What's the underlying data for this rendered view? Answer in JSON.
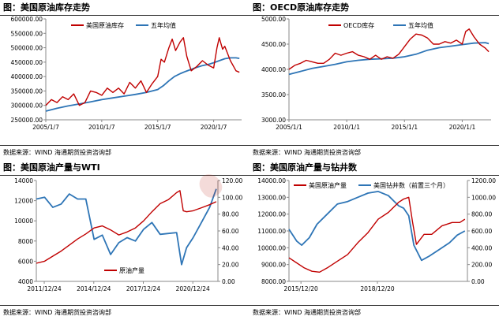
{
  "panels": [
    {
      "title": "图：美国原油库存走势",
      "source": "数据来源：WIND   海通期货投资咨询部"
    },
    {
      "title": "图：OECD原油库存走势",
      "source": "数据来源：WIND   海通期货投资咨询部"
    },
    {
      "title": "图：美国原油产量与WTI",
      "source": "数据来源：WIND   海通期货投资咨询部"
    },
    {
      "title": "图：美国原油产量与钻井数",
      "source": "数据来源：WIND   海通期货投资咨询部"
    }
  ],
  "colors": {
    "red": "#c00000",
    "blue": "#2e75b6"
  },
  "chart_data": [
    {
      "type": "line",
      "title": "美国原油库存走势",
      "x_ticks": [
        "2005/1/7",
        "2010/1/7",
        "2015/1/7",
        "2020/1/7"
      ],
      "x_range": [
        2005.0,
        2022.5
      ],
      "ylim": [
        250000,
        600000
      ],
      "y_ticks": [
        "250000.00",
        "300000.00",
        "350000.00",
        "400000.00",
        "450000.00",
        "500000.00",
        "550000.00",
        "600000.00"
      ],
      "y_axis": "left",
      "grid": false,
      "legend": "top-left",
      "series": [
        {
          "name": "美国原油库存",
          "color": "red",
          "x": [
            2005.0,
            2005.5,
            2006.0,
            2006.5,
            2007.0,
            2007.5,
            2008.0,
            2008.5,
            2009.0,
            2009.5,
            2010.0,
            2010.5,
            2011.0,
            2011.5,
            2012.0,
            2012.5,
            2013.0,
            2013.5,
            2014.0,
            2014.5,
            2015.0,
            2015.3,
            2015.6,
            2016.0,
            2016.3,
            2016.6,
            2017.0,
            2017.3,
            2017.6,
            2018.0,
            2018.5,
            2019.0,
            2019.5,
            2020.0,
            2020.3,
            2020.5,
            2020.8,
            2021.0,
            2021.5,
            2022.0,
            2022.3
          ],
          "y": [
            300000,
            320000,
            310000,
            330000,
            320000,
            340000,
            300000,
            310000,
            350000,
            345000,
            335000,
            360000,
            345000,
            360000,
            340000,
            380000,
            360000,
            385000,
            345000,
            375000,
            400000,
            460000,
            450000,
            500000,
            530000,
            490000,
            520000,
            535000,
            470000,
            420000,
            435000,
            455000,
            440000,
            430000,
            500000,
            535000,
            495000,
            505000,
            455000,
            420000,
            415000
          ]
        },
        {
          "name": "五年均值",
          "color": "blue",
          "x": [
            2005.0,
            2006.0,
            2007.0,
            2008.0,
            2009.0,
            2010.0,
            2011.0,
            2012.0,
            2013.0,
            2014.0,
            2015.0,
            2015.5,
            2016.0,
            2016.5,
            2017.0,
            2017.5,
            2018.0,
            2018.5,
            2019.0,
            2019.5,
            2020.0,
            2020.5,
            2021.0,
            2021.5,
            2022.0,
            2022.3
          ],
          "y": [
            280000,
            290000,
            298000,
            305000,
            312000,
            320000,
            326000,
            332000,
            338000,
            345000,
            355000,
            368000,
            385000,
            400000,
            410000,
            418000,
            425000,
            432000,
            438000,
            442000,
            448000,
            455000,
            462000,
            465000,
            465000,
            463000
          ]
        }
      ]
    },
    {
      "type": "line",
      "title": "OECD原油库存走势",
      "x_ticks": [
        "2005/1/1",
        "2010/1/1",
        "2015/1/1",
        "2020/1/1"
      ],
      "x_range": [
        2005.0,
        2022.5
      ],
      "ylim": [
        3000,
        5000
      ],
      "y_ticks": [
        "3000.00",
        "3500.00",
        "4000.00",
        "4500.00",
        "5000.00"
      ],
      "y_axis": "left",
      "grid": false,
      "legend": "top-left",
      "series": [
        {
          "name": "OECD库存",
          "color": "red",
          "x": [
            2005.0,
            2005.5,
            2006.0,
            2006.5,
            2007.0,
            2007.5,
            2008.0,
            2008.5,
            2009.0,
            2009.5,
            2010.0,
            2010.5,
            2011.0,
            2011.5,
            2012.0,
            2012.5,
            2013.0,
            2013.5,
            2014.0,
            2014.5,
            2015.0,
            2015.5,
            2016.0,
            2016.5,
            2017.0,
            2017.5,
            2018.0,
            2018.5,
            2019.0,
            2019.5,
            2020.0,
            2020.3,
            2020.6,
            2021.0,
            2021.5,
            2022.0,
            2022.3
          ],
          "y": [
            4000,
            4080,
            4120,
            4180,
            4150,
            4120,
            4120,
            4200,
            4320,
            4280,
            4320,
            4350,
            4280,
            4250,
            4200,
            4280,
            4200,
            4250,
            4220,
            4300,
            4450,
            4600,
            4700,
            4680,
            4620,
            4500,
            4500,
            4550,
            4520,
            4580,
            4500,
            4750,
            4800,
            4650,
            4500,
            4420,
            4350
          ]
        },
        {
          "name": "五年均值",
          "color": "blue",
          "x": [
            2005.0,
            2006.0,
            2007.0,
            2008.0,
            2009.0,
            2010.0,
            2011.0,
            2012.0,
            2013.0,
            2014.0,
            2015.0,
            2016.0,
            2017.0,
            2018.0,
            2019.0,
            2020.0,
            2021.0,
            2022.0,
            2022.3
          ],
          "y": [
            3900,
            3960,
            4020,
            4060,
            4100,
            4150,
            4180,
            4200,
            4210,
            4220,
            4250,
            4300,
            4380,
            4430,
            4460,
            4490,
            4520,
            4530,
            4510
          ]
        }
      ]
    },
    {
      "type": "line",
      "title": "美国原油产量与WTI",
      "x_ticks": [
        "2011/12/24",
        "2014/12/24",
        "2017/12/24",
        "2020/12/24"
      ],
      "x_range": [
        2011.5,
        2022.5
      ],
      "ylim": [
        4000,
        14000
      ],
      "y_ticks": [
        "4000",
        "6000",
        "8000",
        "10000",
        "12000",
        "14000"
      ],
      "y2lim": [
        0,
        120
      ],
      "y2_ticks": [
        "0.00",
        "20.00",
        "40.00",
        "60.00",
        "80.00",
        "100.00",
        "120.00"
      ],
      "grid": false,
      "legend": "bottom-center",
      "series": [
        {
          "name": "原油产量",
          "color": "red",
          "axis": "left",
          "x": [
            2011.5,
            2012.0,
            2012.5,
            2013.0,
            2013.5,
            2014.0,
            2014.5,
            2015.0,
            2015.5,
            2016.0,
            2016.5,
            2017.0,
            2017.5,
            2018.0,
            2018.5,
            2019.0,
            2019.5,
            2020.0,
            2020.2,
            2020.4,
            2020.6,
            2021.0,
            2021.5,
            2022.0,
            2022.4
          ],
          "y": [
            5800,
            6000,
            6500,
            7000,
            7600,
            8200,
            8700,
            9300,
            9500,
            9100,
            8600,
            8900,
            9300,
            10000,
            10900,
            11700,
            12100,
            12800,
            13000,
            11000,
            10900,
            11000,
            11300,
            11600,
            11900
          ]
        },
        {
          "name": "",
          "color": "blue",
          "axis": "right",
          "x": [
            2011.5,
            2012.0,
            2012.5,
            2013.0,
            2013.5,
            2014.0,
            2014.5,
            2015.0,
            2015.5,
            2016.0,
            2016.5,
            2017.0,
            2017.5,
            2018.0,
            2018.5,
            2019.0,
            2019.5,
            2020.0,
            2020.3,
            2020.6,
            2021.0,
            2021.5,
            2022.0,
            2022.4
          ],
          "y": [
            98,
            100,
            88,
            92,
            104,
            98,
            98,
            50,
            55,
            32,
            46,
            52,
            48,
            62,
            70,
            56,
            57,
            58,
            20,
            40,
            52,
            70,
            88,
            110
          ]
        }
      ]
    },
    {
      "type": "line",
      "title": "美国原油产量与钻井数",
      "x_ticks": [
        "2015/12/20",
        "2018/12/20"
      ],
      "x_range": [
        2015.5,
        2022.5
      ],
      "ylim": [
        8000,
        14000
      ],
      "y_ticks": [
        "8000.00",
        "9000.00",
        "10000.00",
        "11000.00",
        "12000.00",
        "13000.00",
        "14000.00"
      ],
      "y2lim": [
        0,
        1200
      ],
      "y2_ticks": [
        "0.00",
        "200.00",
        "400.00",
        "600.00",
        "800.00",
        "1000.00",
        "1200.00"
      ],
      "grid": false,
      "legend": "top",
      "series": [
        {
          "name": "美国原油产量",
          "color": "red",
          "axis": "left",
          "x": [
            2015.5,
            2015.8,
            2016.1,
            2016.4,
            2016.7,
            2017.0,
            2017.4,
            2017.8,
            2018.2,
            2018.6,
            2019.0,
            2019.4,
            2019.8,
            2020.0,
            2020.2,
            2020.35,
            2020.5,
            2020.8,
            2021.1,
            2021.5,
            2021.9,
            2022.2,
            2022.4
          ],
          "y": [
            9400,
            9100,
            8800,
            8600,
            8550,
            8800,
            9200,
            9600,
            10300,
            10900,
            11700,
            12100,
            12700,
            12900,
            13000,
            11500,
            10200,
            10800,
            10800,
            11300,
            11500,
            11500,
            11700
          ]
        },
        {
          "name": "美国钻井数（前置三个月）",
          "color": "blue",
          "axis": "right",
          "x": [
            2015.5,
            2015.8,
            2016.0,
            2016.3,
            2016.6,
            2017.0,
            2017.4,
            2017.8,
            2018.2,
            2018.6,
            2019.0,
            2019.4,
            2019.8,
            2020.0,
            2020.2,
            2020.4,
            2020.7,
            2021.0,
            2021.4,
            2021.8,
            2022.1,
            2022.4
          ],
          "y": [
            620,
            480,
            430,
            520,
            680,
            800,
            920,
            950,
            1000,
            1050,
            1070,
            1020,
            900,
            870,
            780,
            430,
            250,
            300,
            380,
            460,
            550,
            600
          ]
        }
      ]
    }
  ]
}
